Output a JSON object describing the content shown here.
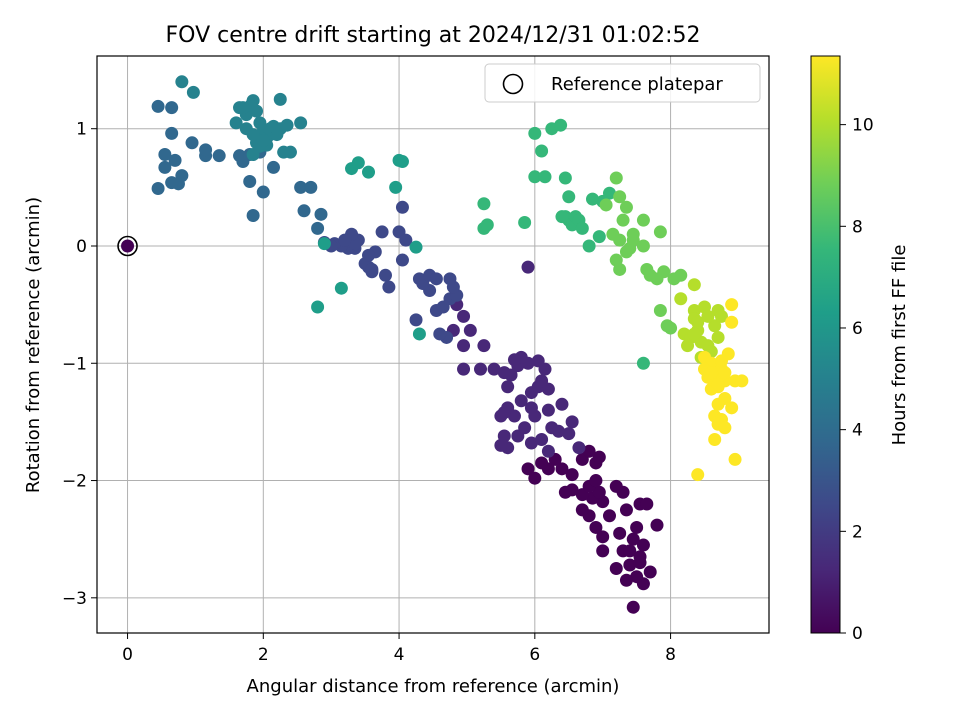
{
  "chart_data": {
    "type": "scatter",
    "title": "FOV centre drift starting at 2024/12/31 01:02:52",
    "xlabel": "Angular distance from reference (arcmin)",
    "ylabel": "Rotation from reference (arcmin)",
    "xlim": [
      -0.45,
      9.45
    ],
    "ylim": [
      -3.3,
      1.62
    ],
    "xticks": [
      0,
      2,
      4,
      6,
      8
    ],
    "xtick_labels": [
      "0",
      "2",
      "4",
      "6",
      "8"
    ],
    "yticks": [
      -3,
      -2,
      -1,
      0,
      1
    ],
    "ytick_labels": [
      "−3",
      "−2",
      "−1",
      "0",
      "1"
    ],
    "grid": true,
    "legend": {
      "placement": "top-right",
      "entries": [
        "Reference platepar"
      ]
    },
    "colorbar": {
      "label": "Hours from first FF file",
      "colormap": "viridis",
      "range": [
        0,
        11.35
      ],
      "ticks": [
        0,
        2,
        4,
        6,
        8,
        10
      ],
      "tick_labels": [
        "0",
        "2",
        "4",
        "6",
        "8",
        "10"
      ]
    },
    "reference": {
      "x": 0,
      "y": 0,
      "color": "#440154"
    },
    "colormap_stops": [
      "#440154",
      "#482878",
      "#3e4989",
      "#31688e",
      "#26828e",
      "#1f9e89",
      "#35b779",
      "#6ece58",
      "#b5de2b",
      "#fde725"
    ],
    "series": [
      {
        "points": [
          [
            7.45,
            -3.08
          ],
          [
            7.6,
            -2.88
          ],
          [
            7.5,
            -2.82
          ],
          [
            7.35,
            -2.85
          ],
          [
            7.7,
            -2.78
          ],
          [
            7.4,
            -2.72
          ],
          [
            7.2,
            -2.75
          ],
          [
            7.55,
            -2.65
          ],
          [
            7.3,
            -2.6
          ],
          [
            7.6,
            -2.55
          ],
          [
            7.45,
            -2.5
          ],
          [
            7.25,
            -2.45
          ],
          [
            7.0,
            -2.48
          ],
          [
            6.9,
            -2.4
          ],
          [
            7.5,
            -2.4
          ],
          [
            7.8,
            -2.38
          ],
          [
            6.8,
            -2.3
          ],
          [
            7.1,
            -2.3
          ],
          [
            7.35,
            -2.25
          ],
          [
            6.7,
            -2.25
          ],
          [
            7.55,
            -2.2
          ],
          [
            7.0,
            -2.18
          ],
          [
            6.85,
            -2.15
          ],
          [
            7.3,
            -2.1
          ],
          [
            7.65,
            -2.2
          ],
          [
            6.95,
            -2.1
          ],
          [
            6.7,
            -2.12
          ],
          [
            7.2,
            -2.05
          ],
          [
            6.55,
            -2.08
          ],
          [
            6.45,
            -2.1
          ],
          [
            6.8,
            -2.05
          ],
          [
            7.0,
            -2.6
          ],
          [
            6.9,
            -2.0
          ],
          [
            7.4,
            -2.6
          ],
          [
            7.55,
            -2.7
          ],
          [
            6.9,
            -1.85
          ],
          [
            6.7,
            -1.82
          ],
          [
            6.55,
            -1.95
          ],
          [
            6.4,
            -1.9
          ],
          [
            6.3,
            -1.82
          ],
          [
            6.2,
            -1.9
          ],
          [
            6.1,
            -1.85
          ],
          [
            5.9,
            -1.9
          ],
          [
            6.0,
            -1.98
          ],
          [
            6.95,
            -1.8
          ],
          [
            6.8,
            -1.75
          ]
        ]
      },
      {
        "points": [
          [
            6.2,
            -1.75
          ],
          [
            6.65,
            -1.72
          ],
          [
            5.95,
            -1.68
          ],
          [
            5.6,
            -1.72
          ],
          [
            5.75,
            -1.62
          ],
          [
            5.5,
            -1.7
          ],
          [
            5.55,
            -1.62
          ],
          [
            6.5,
            -1.6
          ],
          [
            6.1,
            -1.65
          ],
          [
            6.25,
            -1.55
          ],
          [
            6.35,
            -1.58
          ],
          [
            5.85,
            -1.55
          ],
          [
            6.55,
            -1.5
          ],
          [
            5.7,
            -1.45
          ],
          [
            6.0,
            -1.45
          ],
          [
            6.4,
            -1.35
          ],
          [
            6.2,
            -1.4
          ],
          [
            5.95,
            -1.38
          ],
          [
            5.55,
            -1.42
          ],
          [
            5.6,
            -1.38
          ],
          [
            5.5,
            -1.45
          ],
          [
            5.8,
            -1.32
          ],
          [
            5.95,
            -1.25
          ],
          [
            6.05,
            -1.2
          ],
          [
            6.2,
            -1.22
          ],
          [
            6.1,
            -1.15
          ],
          [
            5.65,
            -1.1
          ],
          [
            5.4,
            -1.05
          ],
          [
            5.55,
            -1.08
          ],
          [
            5.75,
            -1.02
          ],
          [
            5.9,
            -1.0
          ],
          [
            6.05,
            -0.98
          ],
          [
            5.8,
            -0.95
          ],
          [
            6.15,
            -1.05
          ],
          [
            5.6,
            -1.2
          ],
          [
            5.7,
            -0.97
          ],
          [
            5.2,
            -1.05
          ],
          [
            4.95,
            -1.05
          ],
          [
            4.95,
            -0.85
          ],
          [
            5.25,
            -0.85
          ],
          [
            5.05,
            -0.72
          ],
          [
            4.8,
            -0.72
          ],
          [
            4.95,
            -0.6
          ],
          [
            4.85,
            -0.5
          ],
          [
            5.9,
            -0.18
          ]
        ]
      },
      {
        "points": [
          [
            4.7,
            -0.78
          ],
          [
            4.6,
            -0.75
          ],
          [
            4.25,
            -0.63
          ],
          [
            4.55,
            -0.55
          ],
          [
            4.65,
            -0.52
          ],
          [
            4.75,
            -0.45
          ],
          [
            4.85,
            -0.42
          ],
          [
            4.8,
            -0.35
          ],
          [
            4.45,
            -0.38
          ],
          [
            4.35,
            -0.32
          ],
          [
            4.3,
            -0.28
          ],
          [
            4.45,
            -0.25
          ],
          [
            4.55,
            -0.28
          ],
          [
            4.75,
            -0.28
          ],
          [
            3.85,
            -0.35
          ],
          [
            3.8,
            -0.25
          ],
          [
            3.6,
            -0.22
          ],
          [
            3.55,
            -0.18
          ],
          [
            3.5,
            -0.15
          ],
          [
            3.65,
            -0.05
          ],
          [
            3.55,
            -0.08
          ],
          [
            3.35,
            -0.02
          ],
          [
            3.25,
            -0.02
          ],
          [
            4.05,
            -0.12
          ],
          [
            3.15,
            0.0
          ],
          [
            3.05,
            0.02
          ],
          [
            4.0,
            0.12
          ],
          [
            3.75,
            0.12
          ],
          [
            4.1,
            0.05
          ],
          [
            4.05,
            0.33
          ],
          [
            3.4,
            0.05
          ],
          [
            3.35,
            0.02
          ],
          [
            3.3,
            0.1
          ],
          [
            3.2,
            0.05
          ],
          [
            3.0,
            0.0
          ],
          [
            2.9,
            0.03
          ],
          [
            3.6,
            -0.2
          ]
        ]
      },
      {
        "points": [
          [
            2.8,
            0.15
          ],
          [
            2.85,
            0.27
          ],
          [
            2.6,
            0.3
          ],
          [
            2.55,
            0.5
          ],
          [
            2.7,
            0.5
          ],
          [
            2.15,
            0.67
          ],
          [
            2.0,
            0.46
          ],
          [
            1.85,
            0.26
          ],
          [
            1.8,
            0.55
          ],
          [
            1.7,
            0.72
          ],
          [
            1.65,
            0.77
          ],
          [
            1.8,
            0.78
          ],
          [
            1.95,
            0.8
          ],
          [
            1.35,
            0.77
          ],
          [
            1.15,
            0.77
          ],
          [
            1.15,
            0.82
          ],
          [
            0.95,
            0.88
          ],
          [
            0.7,
            0.73
          ],
          [
            0.65,
            0.96
          ],
          [
            0.55,
            0.67
          ],
          [
            0.45,
            0.49
          ],
          [
            0.75,
            0.53
          ],
          [
            0.8,
            0.6
          ],
          [
            0.65,
            0.54
          ],
          [
            0.55,
            0.78
          ],
          [
            0.45,
            1.19
          ],
          [
            0.65,
            1.18
          ]
        ]
      },
      {
        "points": [
          [
            0.8,
            1.4
          ],
          [
            0.97,
            1.31
          ],
          [
            1.6,
            1.05
          ],
          [
            1.75,
            1.12
          ],
          [
            1.82,
            1.2
          ],
          [
            1.85,
            1.24
          ],
          [
            1.7,
            1.18
          ],
          [
            1.9,
            1.15
          ],
          [
            1.95,
            1.05
          ],
          [
            2.0,
            0.98
          ],
          [
            2.05,
            0.92
          ],
          [
            2.1,
            0.95
          ],
          [
            1.9,
            0.88
          ],
          [
            2.2,
            0.95
          ],
          [
            2.25,
            1.0
          ],
          [
            2.35,
            1.03
          ],
          [
            2.55,
            1.05
          ],
          [
            2.25,
            1.25
          ],
          [
            2.3,
            0.8
          ],
          [
            2.4,
            0.8
          ],
          [
            1.85,
            0.78
          ],
          [
            2.05,
            0.86
          ],
          [
            1.95,
            0.85
          ],
          [
            1.75,
            1.0
          ],
          [
            1.65,
            1.18
          ],
          [
            2.1,
            1.0
          ],
          [
            1.85,
            0.95
          ],
          [
            2.15,
            1.02
          ],
          [
            2.0,
            0.9
          ]
        ]
      },
      {
        "points": [
          [
            2.8,
            -0.52
          ],
          [
            3.15,
            -0.36
          ],
          [
            2.9,
            0.02
          ],
          [
            3.3,
            0.66
          ],
          [
            3.4,
            0.71
          ],
          [
            3.55,
            0.63
          ],
          [
            3.95,
            0.5
          ],
          [
            4.0,
            0.73
          ],
          [
            4.05,
            0.72
          ],
          [
            4.25,
            -0.01
          ],
          [
            4.3,
            -0.75
          ]
        ]
      },
      {
        "points": [
          [
            5.25,
            0.15
          ],
          [
            5.3,
            0.18
          ],
          [
            5.25,
            0.36
          ],
          [
            5.85,
            0.2
          ],
          [
            6.0,
            0.96
          ],
          [
            6.1,
            0.81
          ],
          [
            6.0,
            0.59
          ],
          [
            6.25,
            1.0
          ],
          [
            6.38,
            1.03
          ],
          [
            6.15,
            0.59
          ],
          [
            6.45,
            0.25
          ],
          [
            6.5,
            0.22
          ],
          [
            6.55,
            0.18
          ],
          [
            6.6,
            0.25
          ],
          [
            6.65,
            0.22
          ],
          [
            6.45,
            0.58
          ],
          [
            6.5,
            0.42
          ],
          [
            6.8,
            0.0
          ],
          [
            6.95,
            0.08
          ],
          [
            7.0,
            0.38
          ],
          [
            7.1,
            0.45
          ],
          [
            7.6,
            -1.0
          ],
          [
            6.85,
            0.4
          ],
          [
            6.7,
            0.15
          ],
          [
            6.4,
            0.25
          ]
        ]
      },
      {
        "points": [
          [
            7.05,
            0.35
          ],
          [
            7.25,
            0.42
          ],
          [
            7.2,
            0.58
          ],
          [
            7.15,
            0.1
          ],
          [
            7.25,
            0.05
          ],
          [
            7.3,
            0.22
          ],
          [
            7.35,
            0.33
          ],
          [
            7.45,
            0.1
          ],
          [
            7.35,
            -0.05
          ],
          [
            7.4,
            -0.02
          ],
          [
            7.6,
            0.0
          ],
          [
            7.65,
            -0.2
          ],
          [
            7.7,
            -0.25
          ],
          [
            7.85,
            0.12
          ],
          [
            7.9,
            -0.22
          ],
          [
            7.85,
            -0.55
          ],
          [
            7.95,
            -0.68
          ],
          [
            8.0,
            -0.7
          ],
          [
            8.05,
            -0.28
          ],
          [
            8.15,
            -0.25
          ],
          [
            7.2,
            -0.12
          ],
          [
            7.45,
            0.05
          ],
          [
            7.6,
            0.22
          ],
          [
            7.8,
            -0.28
          ],
          [
            7.25,
            -0.2
          ]
        ]
      },
      {
        "points": [
          [
            8.15,
            -0.45
          ],
          [
            8.2,
            -0.75
          ],
          [
            8.3,
            -0.78
          ],
          [
            8.35,
            -0.55
          ],
          [
            8.35,
            -0.62
          ],
          [
            8.4,
            -0.72
          ],
          [
            8.45,
            -0.82
          ],
          [
            8.5,
            -0.52
          ],
          [
            8.55,
            -0.85
          ],
          [
            8.65,
            -0.68
          ],
          [
            8.7,
            -0.55
          ],
          [
            8.75,
            -0.6
          ],
          [
            8.4,
            -0.65
          ],
          [
            8.35,
            -0.33
          ],
          [
            8.6,
            -0.9
          ],
          [
            8.7,
            -0.78
          ],
          [
            8.25,
            -0.85
          ],
          [
            8.45,
            -0.95
          ],
          [
            8.55,
            -0.6
          ],
          [
            8.35,
            -0.75
          ]
        ]
      },
      {
        "points": [
          [
            8.5,
            -0.95
          ],
          [
            8.55,
            -1.05
          ],
          [
            8.6,
            -1.0
          ],
          [
            8.65,
            -1.1
          ],
          [
            8.75,
            -1.05
          ],
          [
            8.8,
            -1.15
          ],
          [
            8.7,
            -1.2
          ],
          [
            8.6,
            -1.22
          ],
          [
            8.85,
            -0.92
          ],
          [
            8.75,
            -0.98
          ],
          [
            8.8,
            -1.3
          ],
          [
            8.7,
            -1.35
          ],
          [
            8.65,
            -1.45
          ],
          [
            8.75,
            -1.48
          ],
          [
            8.7,
            -1.52
          ],
          [
            8.8,
            -1.55
          ],
          [
            8.9,
            -1.38
          ],
          [
            8.95,
            -1.15
          ],
          [
            8.9,
            -0.5
          ],
          [
            8.9,
            -0.65
          ],
          [
            8.4,
            -1.95
          ],
          [
            8.65,
            -1.65
          ],
          [
            8.95,
            -1.82
          ],
          [
            9.05,
            -1.15
          ],
          [
            8.55,
            -1.12
          ],
          [
            8.65,
            -1.15
          ],
          [
            8.5,
            -1.05
          ],
          [
            8.7,
            -1.18
          ],
          [
            8.6,
            -1.08
          ],
          [
            8.8,
            -1.08
          ]
        ]
      }
    ]
  }
}
